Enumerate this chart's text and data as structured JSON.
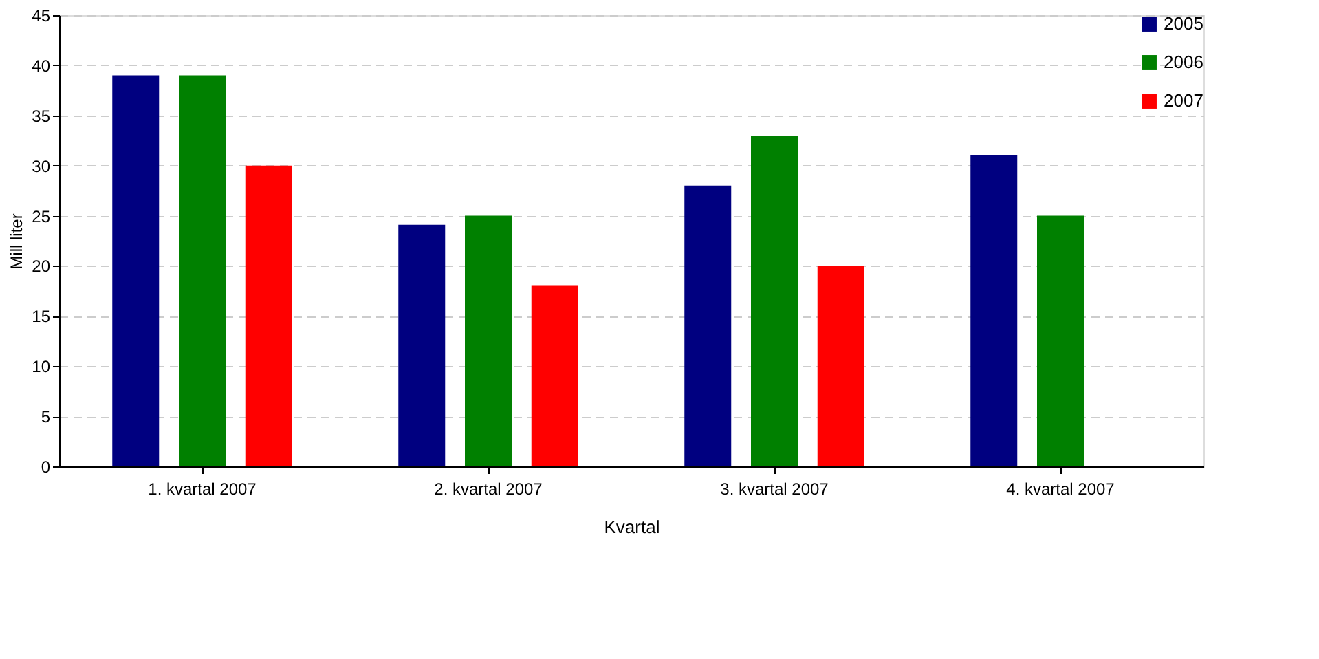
{
  "chart_data": {
    "type": "bar",
    "xlabel": "Kvartal",
    "ylabel": "Mill liter",
    "categories": [
      "1. kvartal 2007",
      "2. kvartal 2007",
      "3. kvartal 2007",
      "4. kvartal 2007"
    ],
    "series": [
      {
        "name": "2005",
        "color": "#000080",
        "values": [
          39,
          24.1,
          28,
          31
        ]
      },
      {
        "name": "2006",
        "color": "#008000",
        "values": [
          39,
          25,
          33,
          25
        ]
      },
      {
        "name": "2007",
        "color": "#ff0000",
        "values": [
          30,
          18,
          20,
          null
        ]
      }
    ],
    "ylim": [
      0,
      45
    ],
    "yticks": [
      0,
      5,
      10,
      15,
      20,
      25,
      30,
      35,
      40,
      45
    ],
    "grid": "y",
    "legend": "top right"
  }
}
